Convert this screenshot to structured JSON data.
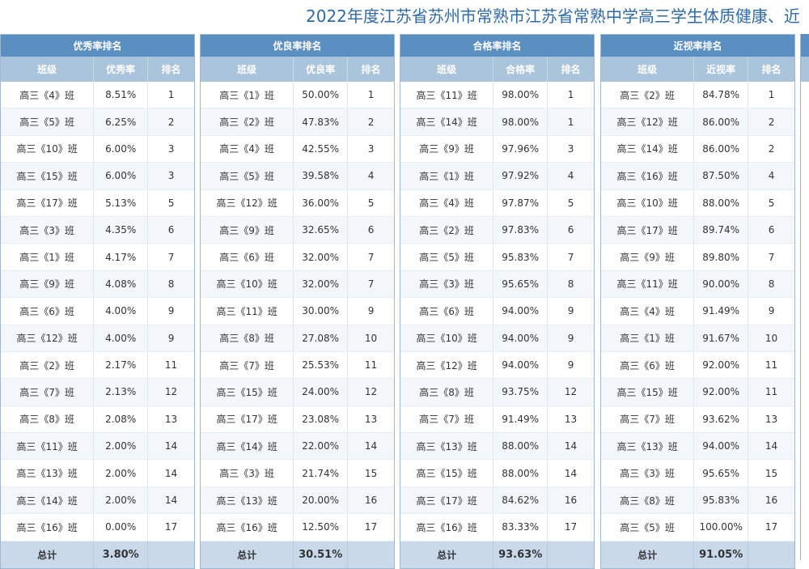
{
  "page": {
    "title": "2022年度江苏省苏州市常熟市江苏省常熟中学高三学生体质健康、近"
  },
  "panels": [
    {
      "title": "优秀率排名",
      "headers": [
        "班级",
        "优秀率",
        "排名"
      ],
      "rows": [
        [
          "高三《4》班",
          "8.51%",
          "1"
        ],
        [
          "高三《5》班",
          "6.25%",
          "2"
        ],
        [
          "高三《10》班",
          "6.00%",
          "3"
        ],
        [
          "高三《15》班",
          "6.00%",
          "3"
        ],
        [
          "高三《17》班",
          "5.13%",
          "5"
        ],
        [
          "高三《3》班",
          "4.35%",
          "6"
        ],
        [
          "高三《1》班",
          "4.17%",
          "7"
        ],
        [
          "高三《9》班",
          "4.08%",
          "8"
        ],
        [
          "高三《6》班",
          "4.00%",
          "9"
        ],
        [
          "高三《12》班",
          "4.00%",
          "9"
        ],
        [
          "高三《2》班",
          "2.17%",
          "11"
        ],
        [
          "高三《7》班",
          "2.13%",
          "12"
        ],
        [
          "高三《8》班",
          "2.08%",
          "13"
        ],
        [
          "高三《11》班",
          "2.00%",
          "14"
        ],
        [
          "高三《13》班",
          "2.00%",
          "14"
        ],
        [
          "高三《14》班",
          "2.00%",
          "14"
        ],
        [
          "高三《16》班",
          "0.00%",
          "17"
        ]
      ],
      "total_label": "总计",
      "total_value": "3.80%"
    },
    {
      "title": "优良率排名",
      "headers": [
        "班级",
        "优良率",
        "排名"
      ],
      "rows": [
        [
          "高三《1》班",
          "50.00%",
          "1"
        ],
        [
          "高三《2》班",
          "47.83%",
          "2"
        ],
        [
          "高三《4》班",
          "42.55%",
          "3"
        ],
        [
          "高三《5》班",
          "39.58%",
          "4"
        ],
        [
          "高三《12》班",
          "36.00%",
          "5"
        ],
        [
          "高三《9》班",
          "32.65%",
          "6"
        ],
        [
          "高三《6》班",
          "32.00%",
          "7"
        ],
        [
          "高三《10》班",
          "32.00%",
          "7"
        ],
        [
          "高三《11》班",
          "30.00%",
          "9"
        ],
        [
          "高三《8》班",
          "27.08%",
          "10"
        ],
        [
          "高三《7》班",
          "25.53%",
          "11"
        ],
        [
          "高三《15》班",
          "24.00%",
          "12"
        ],
        [
          "高三《17》班",
          "23.08%",
          "13"
        ],
        [
          "高三《14》班",
          "22.00%",
          "14"
        ],
        [
          "高三《3》班",
          "21.74%",
          "15"
        ],
        [
          "高三《13》班",
          "20.00%",
          "16"
        ],
        [
          "高三《16》班",
          "12.50%",
          "17"
        ]
      ],
      "total_label": "总计",
      "total_value": "30.51%"
    },
    {
      "title": "合格率排名",
      "headers": [
        "班级",
        "合格率",
        "排名"
      ],
      "rows": [
        [
          "高三《11》班",
          "98.00%",
          "1"
        ],
        [
          "高三《14》班",
          "98.00%",
          "1"
        ],
        [
          "高三《9》班",
          "97.96%",
          "3"
        ],
        [
          "高三《1》班",
          "97.92%",
          "4"
        ],
        [
          "高三《4》班",
          "97.87%",
          "5"
        ],
        [
          "高三《2》班",
          "97.83%",
          "6"
        ],
        [
          "高三《5》班",
          "95.83%",
          "7"
        ],
        [
          "高三《3》班",
          "95.65%",
          "8"
        ],
        [
          "高三《6》班",
          "94.00%",
          "9"
        ],
        [
          "高三《10》班",
          "94.00%",
          "9"
        ],
        [
          "高三《12》班",
          "94.00%",
          "9"
        ],
        [
          "高三《8》班",
          "93.75%",
          "12"
        ],
        [
          "高三《7》班",
          "91.49%",
          "13"
        ],
        [
          "高三《13》班",
          "88.00%",
          "14"
        ],
        [
          "高三《15》班",
          "88.00%",
          "14"
        ],
        [
          "高三《17》班",
          "84.62%",
          "16"
        ],
        [
          "高三《16》班",
          "83.33%",
          "17"
        ]
      ],
      "total_label": "总计",
      "total_value": "93.63%"
    },
    {
      "title": "近视率排名",
      "headers": [
        "班级",
        "近视率",
        "排名"
      ],
      "rows": [
        [
          "高三《2》班",
          "84.78%",
          "1"
        ],
        [
          "高三《12》班",
          "86.00%",
          "2"
        ],
        [
          "高三《14》班",
          "86.00%",
          "2"
        ],
        [
          "高三《16》班",
          "87.50%",
          "4"
        ],
        [
          "高三《10》班",
          "88.00%",
          "5"
        ],
        [
          "高三《17》班",
          "89.74%",
          "6"
        ],
        [
          "高三《9》班",
          "89.80%",
          "7"
        ],
        [
          "高三《11》班",
          "90.00%",
          "8"
        ],
        [
          "高三《4》班",
          "91.49%",
          "9"
        ],
        [
          "高三《1》班",
          "91.67%",
          "10"
        ],
        [
          "高三《6》班",
          "92.00%",
          "11"
        ],
        [
          "高三《15》班",
          "92.00%",
          "11"
        ],
        [
          "高三《7》班",
          "93.62%",
          "13"
        ],
        [
          "高三《13》班",
          "94.00%",
          "14"
        ],
        [
          "高三《3》班",
          "95.65%",
          "15"
        ],
        [
          "高三《8》班",
          "95.83%",
          "16"
        ],
        [
          "高三《5》班",
          "100.00%",
          "17"
        ]
      ],
      "total_label": "总计",
      "total_value": "91.05%"
    }
  ]
}
